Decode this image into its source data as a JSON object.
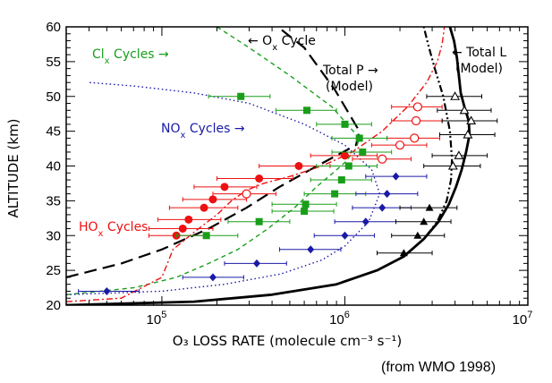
{
  "chart_data": {
    "type": "line",
    "xlabel": "O₃ LOSS RATE (molecule cm⁻³ s⁻¹)",
    "ylabel": "ALTITUDE (km)",
    "xscale": "log",
    "xlim": [
      30000,
      10000000
    ],
    "ylim": [
      20,
      60
    ],
    "x_ticks": [
      {
        "value": 100000,
        "base": "10",
        "exp": "5"
      },
      {
        "value": 1000000,
        "base": "10",
        "exp": "6"
      },
      {
        "value": 10000000,
        "base": "10",
        "exp": "7"
      }
    ],
    "y_ticks": [
      20,
      25,
      30,
      35,
      40,
      45,
      50,
      55,
      60
    ],
    "credit": "(from WMO 1998)",
    "annotations": {
      "clx": {
        "prefix": "Cl",
        "sub": "x",
        "rest": " Cycles →",
        "color": "#1a9e1a"
      },
      "ox": {
        "prefix": "← O",
        "sub": "x",
        "rest": " Cycle",
        "color": "#000000"
      },
      "nox": {
        "prefix": "NO",
        "sub": "x",
        "rest": " Cycles →",
        "color": "#1a1aa6"
      },
      "hox": {
        "prefix": "HO",
        "sub": "x",
        "rest": " Cycles",
        "color": "#ee1111"
      },
      "total_p_1": "Total P →",
      "total_p_2": "(Model)",
      "total_l_1": "← Total L",
      "total_l_2": "(Model)"
    },
    "series": [
      {
        "key": "ox",
        "style": "long-dash",
        "color": "#000000",
        "x": [
          30000,
          60000,
          100000,
          180000,
          290000,
          440000,
          650000,
          900000,
          1150000,
          1200000,
          880000,
          600000,
          430000
        ],
        "y": [
          24,
          26,
          28,
          31,
          34,
          37,
          39.5,
          41.5,
          43,
          45,
          51,
          57,
          60
        ]
      },
      {
        "key": "clx",
        "style": "short-dash",
        "color": "#1a9e1a",
        "x": [
          30000,
          70000,
          120000,
          180000,
          260000,
          380000,
          530000,
          700000,
          860000,
          1000000,
          1150000,
          1200000,
          850000,
          500000,
          300000,
          200000
        ],
        "y": [
          21.5,
          22.5,
          24,
          26,
          28,
          31,
          34,
          37,
          39,
          40.5,
          42.5,
          44,
          48.5,
          53,
          57,
          60
        ]
      },
      {
        "key": "nox",
        "style": "dotted",
        "color": "#1a1aa6",
        "x": [
          30000,
          100000,
          220000,
          450000,
          750000,
          1000000,
          1350000,
          1550000,
          1400000,
          1000000,
          600000,
          300000,
          150000,
          70000,
          40000
        ],
        "y": [
          21.5,
          22,
          23,
          24.5,
          26.5,
          28.5,
          32,
          36,
          39.5,
          43,
          46,
          49,
          50.5,
          51.5,
          52
        ]
      },
      {
        "key": "hox",
        "style": "dash-dot",
        "color": "#ee1111",
        "x": [
          30000,
          60000,
          100000,
          115000,
          150000,
          200000,
          240000,
          290000,
          360000,
          500000,
          750000,
          1100000,
          1600000,
          2200000,
          2800000,
          3200000,
          3400000,
          3500000
        ],
        "y": [
          20.5,
          21,
          24,
          28,
          30.5,
          33,
          35,
          36.5,
          37.5,
          38.5,
          40,
          42,
          45,
          48.5,
          52,
          55,
          57.5,
          60
        ]
      },
      {
        "key": "total_p",
        "style": "dash-dot-dot",
        "color": "#000000",
        "x": [
          30000,
          150000,
          400000,
          900000,
          1500000,
          2100000,
          2700000,
          3200000,
          3600000,
          3800000,
          3850000,
          3750000,
          3450000,
          3100000,
          2850000,
          2700000
        ],
        "y": [
          20,
          20.5,
          21.5,
          23,
          25,
          27,
          29.5,
          32,
          35,
          38,
          41,
          45,
          50,
          54,
          57.5,
          60
        ]
      },
      {
        "key": "total_l",
        "style": "solid-thick",
        "color": "#000000",
        "x": [
          30000,
          150000,
          400000,
          900000,
          1500000,
          2100000,
          2700000,
          3250000,
          3700000,
          4050000,
          4350000,
          4600000,
          4800000,
          4750000,
          4500000,
          4300000,
          4200000,
          4100000,
          3950000,
          3750000
        ],
        "y": [
          20,
          20.5,
          21.5,
          23,
          25,
          27,
          29.5,
          32,
          34.5,
          37,
          39.5,
          42,
          44.5,
          46.5,
          48.5,
          50.5,
          53,
          55.5,
          58,
          60
        ]
      }
    ],
    "observations": [
      {
        "key": "hox_obs",
        "color": "#ee1111",
        "marker": "circle-filled",
        "points": [
          {
            "x": 120000,
            "y": 30,
            "lo": 85000,
            "hi": 175000
          },
          {
            "x": 130000,
            "y": 31,
            "lo": 85000,
            "hi": 190000
          },
          {
            "x": 140000,
            "y": 32.3,
            "lo": 95000,
            "hi": 210000
          },
          {
            "x": 170000,
            "y": 34,
            "lo": 110000,
            "hi": 260000
          },
          {
            "x": 190000,
            "y": 35.2,
            "lo": 130000,
            "hi": 290000
          },
          {
            "x": 220000,
            "y": 37,
            "lo": 150000,
            "hi": 330000
          },
          {
            "x": 340000,
            "y": 38.2,
            "lo": 200000,
            "hi": 520000
          },
          {
            "x": 560000,
            "y": 40,
            "lo": 340000,
            "hi": 830000
          },
          {
            "x": 1000000,
            "y": 41.5,
            "lo": 650000,
            "hi": 1500000
          }
        ]
      },
      {
        "key": "hox_obs_open",
        "color": "#ee1111",
        "marker": "circle-open",
        "points": [
          {
            "x": 290000,
            "y": 36,
            "lo": 190000,
            "hi": 420000
          },
          {
            "x": 1600000,
            "y": 41,
            "lo": 1100000,
            "hi": 2300000
          },
          {
            "x": 2000000,
            "y": 43,
            "lo": 1400000,
            "hi": 2800000
          },
          {
            "x": 2400000,
            "y": 44,
            "lo": 1700000,
            "hi": 3300000
          },
          {
            "x": 2450000,
            "y": 46.5,
            "lo": 1800000,
            "hi": 3400000
          },
          {
            "x": 2500000,
            "y": 48.5,
            "lo": 1800000,
            "hi": 3400000
          }
        ]
      },
      {
        "key": "clx_obs",
        "color": "#1a9e1a",
        "marker": "square-filled",
        "points": [
          {
            "x": 175000,
            "y": 30,
            "lo": 120000,
            "hi": 260000
          },
          {
            "x": 340000,
            "y": 32,
            "lo": 230000,
            "hi": 500000
          },
          {
            "x": 600000,
            "y": 33.5,
            "lo": 400000,
            "hi": 870000
          },
          {
            "x": 610000,
            "y": 34.5,
            "lo": 400000,
            "hi": 900000
          },
          {
            "x": 880000,
            "y": 36,
            "lo": 600000,
            "hi": 1300000
          },
          {
            "x": 960000,
            "y": 38,
            "lo": 650000,
            "hi": 1400000
          },
          {
            "x": 1050000,
            "y": 40,
            "lo": 700000,
            "hi": 1500000
          },
          {
            "x": 1250000,
            "y": 42,
            "lo": 850000,
            "hi": 1800000
          },
          {
            "x": 1200000,
            "y": 44,
            "lo": 850000,
            "hi": 1700000
          },
          {
            "x": 1000000,
            "y": 46,
            "lo": 700000,
            "hi": 1400000
          },
          {
            "x": 620000,
            "y": 48,
            "lo": 420000,
            "hi": 900000
          },
          {
            "x": 270000,
            "y": 50,
            "lo": 180000,
            "hi": 390000
          }
        ]
      },
      {
        "key": "nox_obs",
        "color": "#1a1aa6",
        "marker": "diamond-filled",
        "points": [
          {
            "x": 50000,
            "y": 22,
            "lo": 35000,
            "hi": 75000
          },
          {
            "x": 190000,
            "y": 24,
            "lo": 130000,
            "hi": 280000
          },
          {
            "x": 330000,
            "y": 26,
            "lo": 220000,
            "hi": 480000
          },
          {
            "x": 650000,
            "y": 28,
            "lo": 440000,
            "hi": 950000
          },
          {
            "x": 1000000,
            "y": 30,
            "lo": 680000,
            "hi": 1450000
          },
          {
            "x": 1300000,
            "y": 32,
            "lo": 880000,
            "hi": 1900000
          },
          {
            "x": 1600000,
            "y": 34,
            "lo": 1100000,
            "hi": 2300000
          },
          {
            "x": 1700000,
            "y": 36,
            "lo": 1150000,
            "hi": 2500000
          },
          {
            "x": 1900000,
            "y": 38.5,
            "lo": 1300000,
            "hi": 2800000
          }
        ]
      },
      {
        "key": "total_obs",
        "color": "#000000",
        "marker": "triangle-filled",
        "points": [
          {
            "x": 2100000,
            "y": 27.5,
            "lo": 1500000,
            "hi": 3000000
          },
          {
            "x": 2500000,
            "y": 30,
            "lo": 1800000,
            "hi": 3500000
          },
          {
            "x": 2700000,
            "y": 32,
            "lo": 1900000,
            "hi": 3800000
          },
          {
            "x": 2900000,
            "y": 34,
            "lo": 2000000,
            "hi": 4100000
          }
        ]
      },
      {
        "key": "total_obs_open",
        "color": "#000000",
        "marker": "triangle-open",
        "points": [
          {
            "x": 3900000,
            "y": 40,
            "lo": 2700000,
            "hi": 5500000
          },
          {
            "x": 4200000,
            "y": 41.5,
            "lo": 3000000,
            "hi": 6000000
          },
          {
            "x": 4700000,
            "y": 44.5,
            "lo": 3300000,
            "hi": 6600000
          },
          {
            "x": 4900000,
            "y": 46.5,
            "lo": 3400000,
            "hi": 6800000
          },
          {
            "x": 4500000,
            "y": 48,
            "lo": 3200000,
            "hi": 6300000
          },
          {
            "x": 4000000,
            "y": 50,
            "lo": 2800000,
            "hi": 5600000
          }
        ]
      }
    ]
  }
}
